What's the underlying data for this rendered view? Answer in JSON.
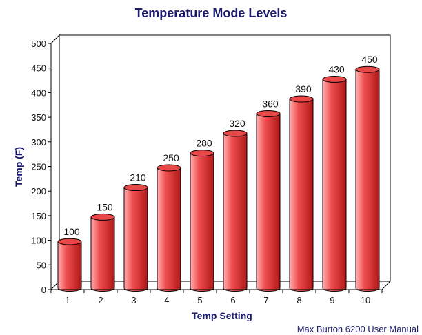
{
  "colors": {
    "title": "#1a1a6e",
    "bar_light": "#ffb0b0",
    "bar_mid": "#f05050",
    "bar_dark": "#b01818",
    "bar_top": "#e84848",
    "axis": "#000000",
    "plot_bg": "#ffffff",
    "credit": "#1a1a6e"
  },
  "footer": {
    "credit": "Max Burton 6200 User Manual"
  },
  "chart_data": {
    "type": "bar",
    "title": "Temperature Mode Levels",
    "xlabel": "Temp Setting",
    "ylabel": "Temp (F)",
    "categories": [
      "1",
      "2",
      "3",
      "4",
      "5",
      "6",
      "7",
      "8",
      "9",
      "10"
    ],
    "series": [
      {
        "values": [
          100,
          150,
          210,
          250,
          280,
          320,
          360,
          390,
          430,
          450
        ]
      }
    ],
    "ylim": [
      0,
      500
    ],
    "yticks": [
      0,
      50,
      100,
      150,
      200,
      250,
      300,
      350,
      400,
      450,
      500
    ],
    "data_labels": [
      "100",
      "150",
      "210",
      "250",
      "280",
      "320",
      "360",
      "390",
      "430",
      "450"
    ],
    "grid": false,
    "legend": "none",
    "style": "3d-cylinder"
  }
}
